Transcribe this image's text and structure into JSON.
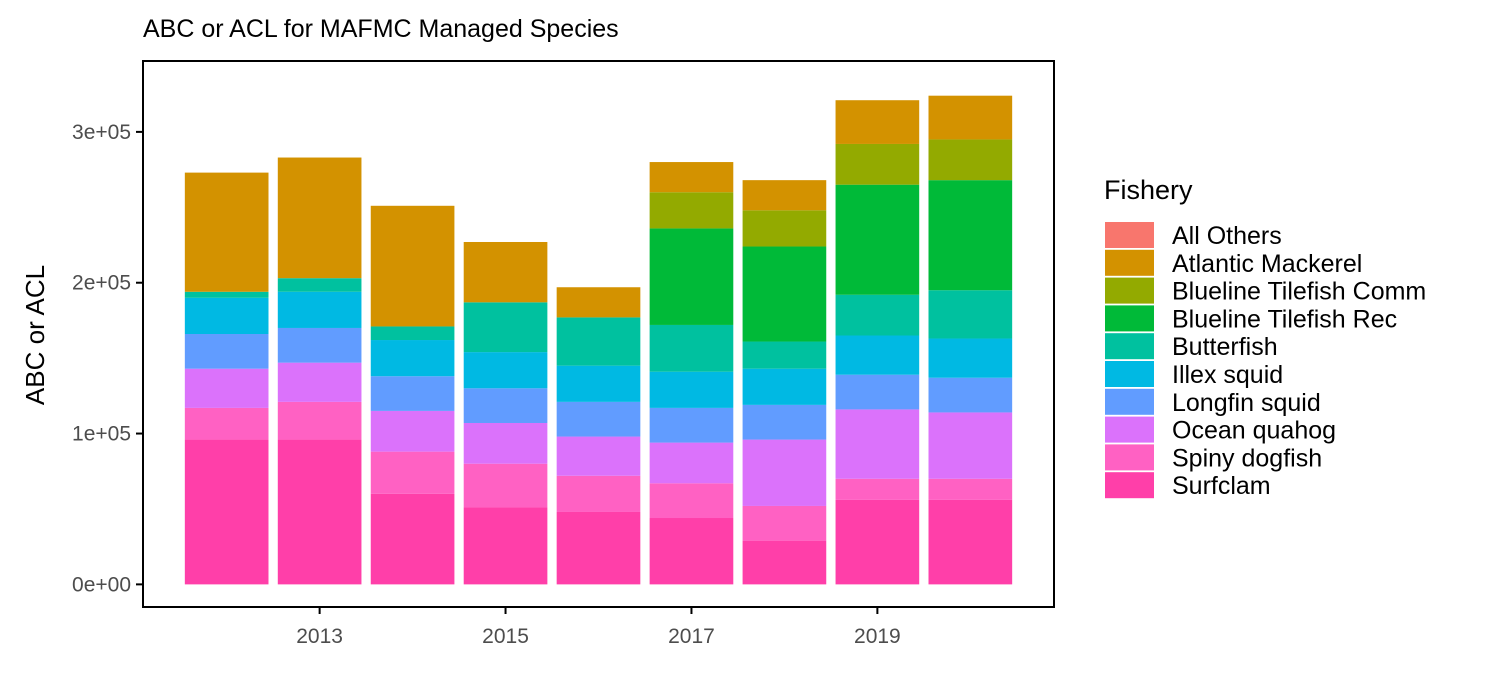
{
  "chart_data": {
    "type": "bar",
    "stacked": true,
    "title": "ABC or ACL for MAFMC Managed Species",
    "xlabel": "",
    "ylabel": "ABC or ACL",
    "x_tick_labels": [
      "2013",
      "2015",
      "2017",
      "2019"
    ],
    "y_tick_labels": [
      "0e+00",
      "1e+05",
      "2e+05",
      "3e+05"
    ],
    "y_ticks": [
      0,
      100000,
      200000,
      300000
    ],
    "ylim": [
      -15000,
      347000
    ],
    "xlim": [
      2011.1,
      2020.9
    ],
    "grid": false,
    "legend_position": "right",
    "legend_title": "Fishery",
    "categories": [
      2012,
      2013,
      2014,
      2015,
      2016,
      2017,
      2018,
      2019,
      2020
    ],
    "series": [
      {
        "name": "All Others",
        "color": "#F8766D",
        "values": [
          0,
          0,
          0,
          0,
          0,
          0,
          0,
          0,
          0
        ]
      },
      {
        "name": "Atlantic Mackerel",
        "color": "#D39200",
        "values": [
          79000,
          80000,
          80000,
          40000,
          20000,
          20000,
          20000,
          29000,
          29000
        ]
      },
      {
        "name": "Blueline Tilefish Comm",
        "color": "#93AA00",
        "values": [
          0,
          0,
          0,
          0,
          0,
          24000,
          24000,
          27000,
          27000
        ]
      },
      {
        "name": "Blueline Tilefish Rec",
        "color": "#00BA38",
        "values": [
          0,
          0,
          0,
          0,
          0,
          64000,
          63000,
          73000,
          73000
        ]
      },
      {
        "name": "Butterfish",
        "color": "#00C19F",
        "values": [
          4000,
          9000,
          9000,
          33000,
          32000,
          31000,
          18000,
          27000,
          32000
        ]
      },
      {
        "name": "Illex squid",
        "color": "#00B9E3",
        "values": [
          24000,
          24000,
          24000,
          24000,
          24000,
          24000,
          24000,
          26000,
          26000
        ]
      },
      {
        "name": "Longfin squid",
        "color": "#619CFF",
        "values": [
          23000,
          23000,
          23000,
          23000,
          23000,
          23000,
          23000,
          23000,
          23000
        ]
      },
      {
        "name": "Ocean quahog",
        "color": "#DB72FB",
        "values": [
          26000,
          26000,
          27000,
          27000,
          26000,
          27000,
          44000,
          46000,
          44000
        ]
      },
      {
        "name": "Spiny dogfish",
        "color": "#FF61C3",
        "values": [
          21000,
          25000,
          28000,
          29000,
          24000,
          23000,
          23000,
          14000,
          14000
        ]
      },
      {
        "name": "Surfclam",
        "color": "#FF3FA9",
        "values": [
          96000,
          96000,
          60000,
          51000,
          48000,
          44000,
          29000,
          56000,
          56000
        ]
      }
    ],
    "bar_width_years": 0.9,
    "axis_color": "#000000",
    "tick_label_color": "#4d4d4d"
  }
}
